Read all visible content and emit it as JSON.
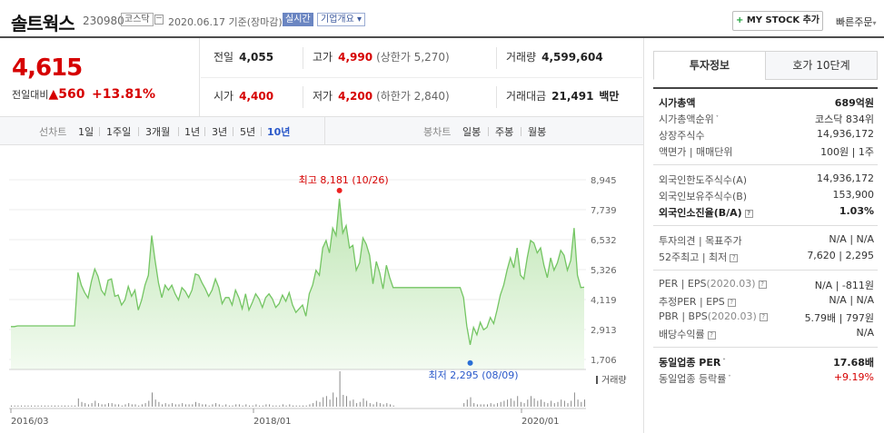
{
  "header": {
    "name": "솔트웍스",
    "code": "230980",
    "market": "코스닥",
    "date": "2020.06.17 기준(장마감)",
    "realtime": "실시간",
    "company_info": "기업개요",
    "mystock": "MY STOCK 추가",
    "quick_order": "빠른주문"
  },
  "price": {
    "now": "4,615",
    "change_label": "전일대비",
    "change": "560",
    "change_pct": "+13.81%"
  },
  "quote": {
    "prev": {
      "label": "전일",
      "value": "4,055"
    },
    "high": {
      "label": "고가",
      "value": "4,990",
      "sub": "(상한가 5,270)"
    },
    "volume": {
      "label": "거래량",
      "value": "4,599,604"
    },
    "open": {
      "label": "시가",
      "value": "4,400"
    },
    "low": {
      "label": "저가",
      "value": "4,200",
      "sub": "(하한가 2,840)"
    },
    "amount": {
      "label": "거래대금",
      "value": "21,491",
      "unit": "백만"
    }
  },
  "toolbar": {
    "line_label": "선차트",
    "periods": [
      "1일",
      "1주일",
      "3개월",
      "1년",
      "3년",
      "5년",
      "10년"
    ],
    "selected_period": "10년",
    "candle_label": "봉차트",
    "candles": [
      "일봉",
      "주봉",
      "월봉"
    ]
  },
  "chart_data": {
    "type": "area",
    "title": "",
    "y_ticks": [
      "8,945",
      "7,739",
      "6,532",
      "5,326",
      "4,119",
      "2,913",
      "1,706"
    ],
    "ylim": [
      1706,
      8945
    ],
    "x_ticks": [
      "2016/03",
      "2018/01",
      "2020/01"
    ],
    "high_label": "최고 8,181 (10/26)",
    "low_label": "최저 2,295 (08/09)",
    "volume_label": "거래량",
    "series": [
      {
        "values": [
          3030,
          3030,
          3060,
          3060,
          3060,
          3060,
          3060,
          3060,
          3060,
          3060,
          3060,
          3060,
          3060,
          3060,
          3060,
          3060,
          3060,
          3060,
          3060,
          3060,
          5210,
          4700,
          4400,
          4180,
          4850,
          5350,
          5050,
          4500,
          4300,
          4900,
          4950,
          4250,
          4300,
          3900,
          4100,
          4650,
          4250,
          4500,
          3700,
          4100,
          4700,
          5100,
          6700,
          5700,
          4800,
          4200,
          4700,
          4500,
          4700,
          4350,
          4100,
          4600,
          4450,
          4200,
          4500,
          5150,
          5100,
          4800,
          4550,
          4250,
          4500,
          4950,
          4600,
          3950,
          4200,
          4200,
          3900,
          4500,
          4200,
          3750,
          4350,
          3700,
          4000,
          4350,
          4150,
          3800,
          4200,
          4350,
          4150,
          3800,
          3950,
          4300,
          4050,
          4400,
          3900,
          3600,
          3750,
          3900,
          3450,
          4350,
          4700,
          5300,
          5100,
          6200,
          6500,
          6000,
          7000,
          6700,
          8181,
          6800,
          7100,
          6200,
          6300,
          5300,
          5600,
          6600,
          6350,
          5900,
          4750,
          5650,
          5200,
          4550,
          5500,
          5000,
          4600,
          4600,
          4600,
          4600,
          4600,
          4600,
          4600,
          4600,
          4600,
          4600,
          4600,
          4600,
          4600,
          4600,
          4600,
          4600,
          4600,
          4600,
          4600,
          4600,
          4600,
          4200,
          3050,
          2295,
          3000,
          2700,
          3200,
          2900,
          3000,
          3400,
          3150,
          3700,
          4300,
          4700,
          5300,
          5800,
          5400,
          6200,
          5100,
          4950,
          5800,
          6500,
          6400,
          6000,
          6200,
          5500,
          5000,
          5800,
          5300,
          5600,
          6100,
          5900,
          5300,
          5700,
          7000,
          5100,
          4600,
          4615
        ]
      }
    ]
  },
  "invest": {
    "tabs": [
      "투자정보",
      "호가 10단계"
    ],
    "rows": [
      {
        "k": "시가총액",
        "v": "689억원",
        "kb": true,
        "vb": true
      },
      {
        "k": "시가총액순위",
        "v": "코스닥 834위",
        "mark": "ᐩ"
      },
      {
        "k": "상장주식수",
        "v": "14,936,172"
      },
      {
        "k": "액면가 | 매매단위",
        "v": "100원 | 1주"
      }
    ],
    "rows2": [
      {
        "k": "외국인한도주식수(A)",
        "v": "14,936,172"
      },
      {
        "k": "외국인보유주식수(B)",
        "v": "153,900"
      },
      {
        "k": "외국인소진율(B/A)",
        "v": "1.03%",
        "kb": true,
        "vb": true,
        "q": true
      }
    ],
    "rows3": [
      {
        "k": "투자의견 | 목표주가",
        "v": "N/A | N/A"
      },
      {
        "k": "52주최고 | 최저",
        "v": "7,620 | 2,295",
        "q": true
      }
    ],
    "rows4": [
      {
        "k": "PER | EPS",
        "kd": "(2020.03)",
        "v": "N/A | -811원",
        "q": true
      },
      {
        "k": "추정PER | EPS",
        "v": "N/A | N/A",
        "q": true
      },
      {
        "k": "PBR | BPS",
        "kd": "(2020.03)",
        "v": "5.79배 | 797원",
        "q": true
      },
      {
        "k": "배당수익률",
        "v": "N/A",
        "q": true
      }
    ],
    "rows5": [
      {
        "k": "동일업종 PER",
        "v": "17.68배",
        "kb": true,
        "vb": true,
        "mark": "ᐩ"
      },
      {
        "k": "동일업종 등락률",
        "v": "+9.19%",
        "red": true,
        "mark": "ᐩ"
      }
    ]
  }
}
